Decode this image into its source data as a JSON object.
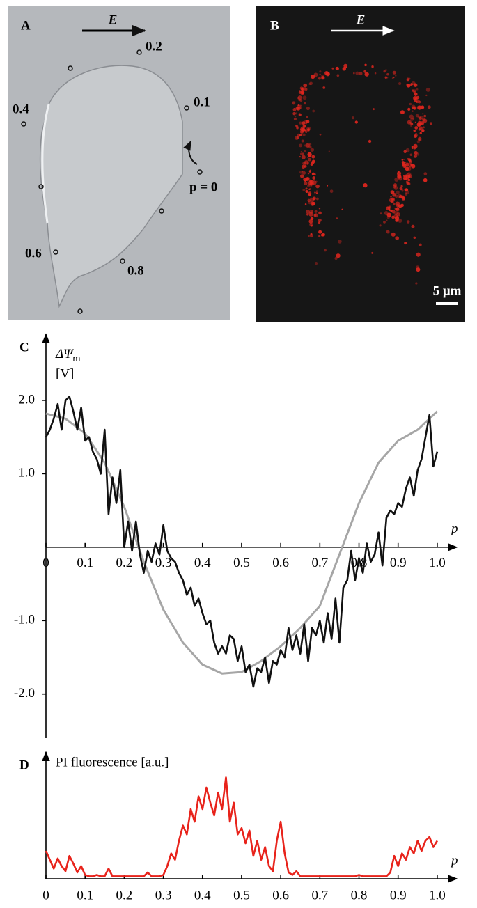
{
  "panels": {
    "A": {
      "label": "A",
      "field_label": "E",
      "markers": [
        "0.2",
        "0.1",
        "0.4",
        "p = 0",
        "0.6",
        "0.8"
      ]
    },
    "B": {
      "label": "B",
      "field_label": "E",
      "scale_bar": "5 μm"
    }
  },
  "chart_data": [
    {
      "type": "line",
      "panel_label": "C",
      "y_label": "ΔΨ",
      "y_label_sub": "m",
      "y_unit": "[V]",
      "x_label": "p",
      "xlim": [
        0,
        1.05
      ],
      "ylim": [
        -2.6,
        2.9
      ],
      "xticks": [
        0,
        0.1,
        0.2,
        0.3,
        0.4,
        0.5,
        0.6,
        0.7,
        0.8,
        0.9,
        {
          "value": 1,
          "label": "1.0"
        }
      ],
      "yticks": [
        {
          "value": 2,
          "label": "2.0"
        },
        {
          "value": 1,
          "label": "1.0"
        },
        {
          "value": -1,
          "label": "-1.0"
        },
        {
          "value": -2,
          "label": "-2.0"
        }
      ],
      "series": [
        {
          "color": "#a6a6a6",
          "x": [
            0,
            0.05,
            0.1,
            0.15,
            0.2,
            0.25,
            0.3,
            0.35,
            0.4,
            0.45,
            0.5,
            0.55,
            0.6,
            0.65,
            0.7,
            0.75,
            0.8,
            0.85,
            0.9,
            0.95,
            1.0
          ],
          "values": [
            1.82,
            1.75,
            1.55,
            1.15,
            0.55,
            -0.2,
            -0.85,
            -1.3,
            -1.6,
            -1.72,
            -1.7,
            -1.55,
            -1.35,
            -1.1,
            -0.8,
            -0.1,
            0.6,
            1.15,
            1.45,
            1.6,
            1.85
          ]
        },
        {
          "color": "#111111",
          "x": [
            0,
            0.01,
            0.02,
            0.03,
            0.04,
            0.05,
            0.06,
            0.07,
            0.08,
            0.09,
            0.1,
            0.11,
            0.12,
            0.13,
            0.14,
            0.15,
            0.16,
            0.17,
            0.18,
            0.19,
            0.2,
            0.21,
            0.22,
            0.23,
            0.24,
            0.25,
            0.26,
            0.27,
            0.28,
            0.29,
            0.3,
            0.31,
            0.32,
            0.33,
            0.34,
            0.35,
            0.36,
            0.37,
            0.38,
            0.39,
            0.4,
            0.41,
            0.42,
            0.43,
            0.44,
            0.45,
            0.46,
            0.47,
            0.48,
            0.49,
            0.5,
            0.51,
            0.52,
            0.53,
            0.54,
            0.55,
            0.56,
            0.57,
            0.58,
            0.59,
            0.6,
            0.61,
            0.62,
            0.63,
            0.64,
            0.65,
            0.66,
            0.67,
            0.68,
            0.69,
            0.7,
            0.71,
            0.72,
            0.73,
            0.74,
            0.75,
            0.76,
            0.77,
            0.78,
            0.79,
            0.8,
            0.81,
            0.82,
            0.83,
            0.84,
            0.85,
            0.86,
            0.87,
            0.88,
            0.89,
            0.9,
            0.91,
            0.92,
            0.93,
            0.94,
            0.95,
            0.96,
            0.97,
            0.98,
            0.99,
            1.0
          ],
          "values": [
            1.5,
            1.6,
            1.75,
            1.95,
            1.6,
            2.0,
            2.05,
            1.85,
            1.6,
            1.9,
            1.45,
            1.5,
            1.3,
            1.2,
            1.0,
            1.6,
            0.45,
            0.95,
            0.6,
            1.05,
            0.0,
            0.35,
            -0.05,
            0.35,
            -0.1,
            -0.35,
            -0.05,
            -0.2,
            0.05,
            -0.1,
            0.3,
            -0.05,
            -0.15,
            -0.2,
            -0.35,
            -0.45,
            -0.65,
            -0.55,
            -0.8,
            -0.7,
            -0.9,
            -1.05,
            -1.0,
            -1.3,
            -1.45,
            -1.35,
            -1.45,
            -1.2,
            -1.25,
            -1.55,
            -1.35,
            -1.7,
            -1.6,
            -1.9,
            -1.65,
            -1.7,
            -1.5,
            -1.85,
            -1.55,
            -1.6,
            -1.4,
            -1.5,
            -1.1,
            -1.4,
            -1.2,
            -1.45,
            -1.05,
            -1.55,
            -1.1,
            -1.2,
            -1.0,
            -1.3,
            -0.9,
            -1.25,
            -0.7,
            -1.3,
            -0.55,
            -0.45,
            -0.05,
            -0.45,
            -0.15,
            -0.35,
            0.05,
            -0.2,
            -0.1,
            0.2,
            -0.25,
            0.4,
            0.5,
            0.45,
            0.6,
            0.55,
            0.8,
            0.95,
            0.7,
            1.05,
            1.2,
            1.5,
            1.8,
            1.1,
            1.3
          ]
        }
      ]
    },
    {
      "type": "line",
      "panel_label": "D",
      "y_label": "PI fluorescence [a.u.]",
      "x_label": "p",
      "xlim": [
        0,
        1.05
      ],
      "ylim": [
        0,
        1
      ],
      "xticks": [
        0,
        0.1,
        0.2,
        0.3,
        0.4,
        0.5,
        0.6,
        0.7,
        0.8,
        0.9,
        {
          "value": 1,
          "label": "1.0"
        }
      ],
      "series": [
        {
          "color": "#e8231b",
          "x": [
            0,
            0.01,
            0.02,
            0.03,
            0.04,
            0.05,
            0.06,
            0.07,
            0.08,
            0.09,
            0.1,
            0.11,
            0.12,
            0.13,
            0.14,
            0.15,
            0.16,
            0.17,
            0.18,
            0.19,
            0.2,
            0.21,
            0.22,
            0.23,
            0.24,
            0.25,
            0.26,
            0.27,
            0.28,
            0.29,
            0.3,
            0.31,
            0.32,
            0.33,
            0.34,
            0.35,
            0.36,
            0.37,
            0.38,
            0.39,
            0.4,
            0.41,
            0.42,
            0.43,
            0.44,
            0.45,
            0.46,
            0.47,
            0.48,
            0.49,
            0.5,
            0.51,
            0.52,
            0.53,
            0.54,
            0.55,
            0.56,
            0.57,
            0.58,
            0.59,
            0.6,
            0.61,
            0.62,
            0.63,
            0.64,
            0.65,
            0.66,
            0.67,
            0.68,
            0.69,
            0.7,
            0.71,
            0.72,
            0.73,
            0.74,
            0.75,
            0.76,
            0.77,
            0.78,
            0.79,
            0.8,
            0.81,
            0.82,
            0.83,
            0.84,
            0.85,
            0.86,
            0.87,
            0.88,
            0.89,
            0.9,
            0.91,
            0.92,
            0.93,
            0.94,
            0.95,
            0.96,
            0.97,
            0.98,
            0.99,
            1.0
          ],
          "values": [
            0.22,
            0.15,
            0.08,
            0.16,
            0.1,
            0.06,
            0.18,
            0.12,
            0.05,
            0.1,
            0.03,
            0.02,
            0.02,
            0.03,
            0.02,
            0.02,
            0.08,
            0.02,
            0.02,
            0.02,
            0.02,
            0.02,
            0.02,
            0.02,
            0.02,
            0.02,
            0.05,
            0.02,
            0.02,
            0.02,
            0.03,
            0.1,
            0.2,
            0.15,
            0.3,
            0.42,
            0.35,
            0.55,
            0.45,
            0.65,
            0.55,
            0.72,
            0.6,
            0.5,
            0.68,
            0.55,
            0.8,
            0.45,
            0.6,
            0.35,
            0.4,
            0.28,
            0.38,
            0.18,
            0.3,
            0.15,
            0.25,
            0.1,
            0.06,
            0.3,
            0.45,
            0.2,
            0.05,
            0.03,
            0.06,
            0.02,
            0.02,
            0.02,
            0.02,
            0.02,
            0.02,
            0.02,
            0.02,
            0.02,
            0.02,
            0.02,
            0.02,
            0.02,
            0.02,
            0.02,
            0.03,
            0.02,
            0.02,
            0.02,
            0.02,
            0.02,
            0.02,
            0.02,
            0.05,
            0.18,
            0.1,
            0.2,
            0.15,
            0.25,
            0.2,
            0.3,
            0.22,
            0.3,
            0.33,
            0.25,
            0.3
          ]
        }
      ]
    }
  ]
}
